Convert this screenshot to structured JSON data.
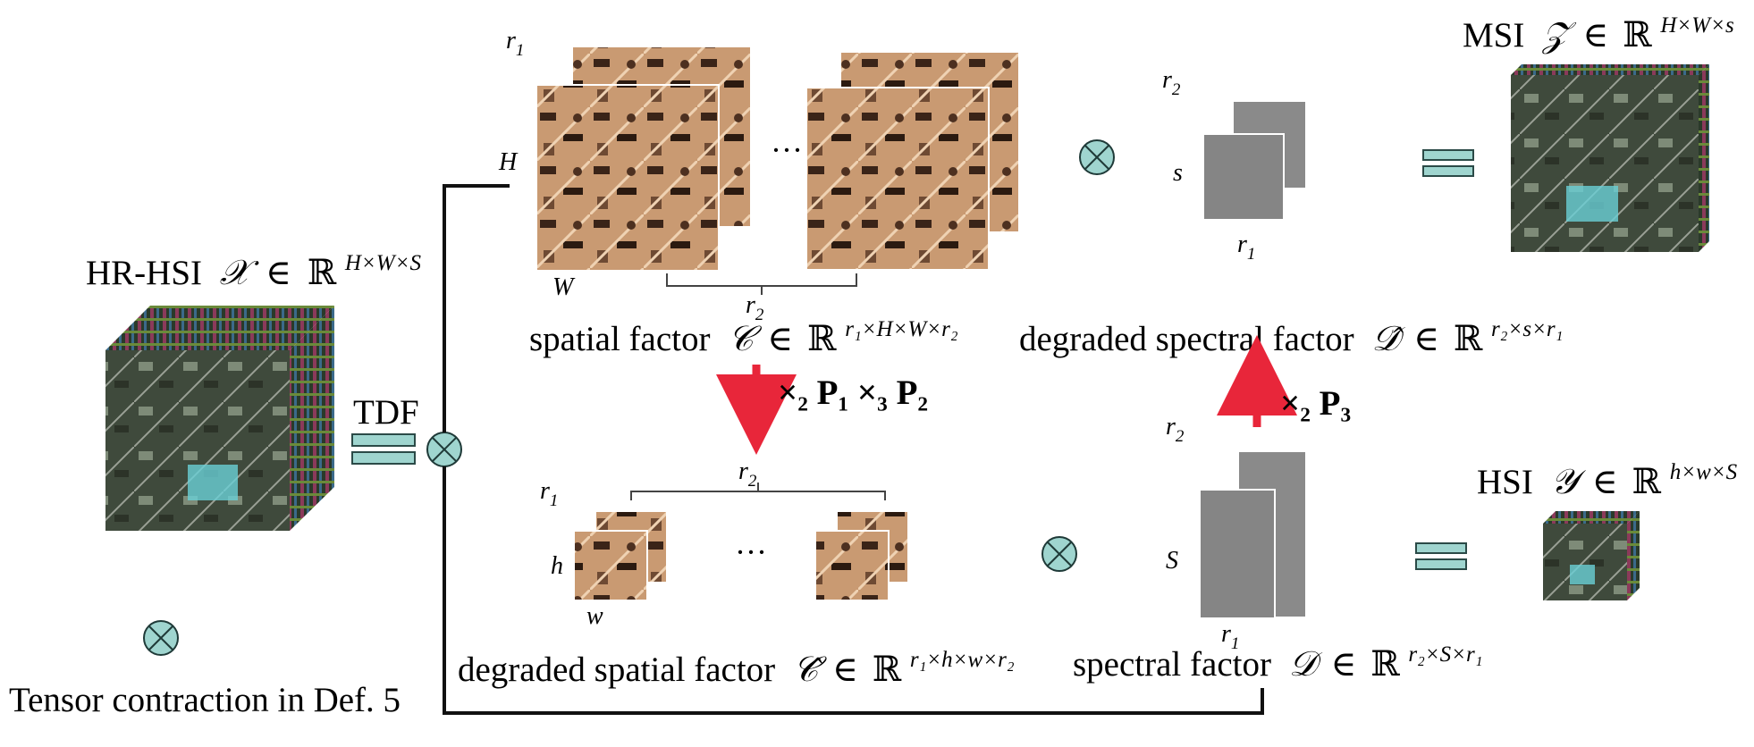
{
  "hr_hsi": {
    "label": "HR-HSI",
    "sym": "𝒳",
    "in": "∈",
    "ring": "ℝ",
    "exp": "H×W×S"
  },
  "tdf": {
    "label": "TDF"
  },
  "legend": {
    "text": "Tensor contraction in Def. 5"
  },
  "spatial": {
    "H": "H",
    "W": "W",
    "r1": "r",
    "r1s": "1",
    "r2": "r",
    "r2s": "2",
    "caption_text": "spatial factor",
    "sym": "𝒞",
    "in": "∈",
    "ring": "ℝ",
    "exp": "r₁×H×W×r₂",
    "dots": "···"
  },
  "deg_spatial": {
    "h": "h",
    "w": "w",
    "r1": "r",
    "r1s": "1",
    "r2": "r",
    "r2s": "2",
    "caption_text": "degraded spatial factor",
    "sym": "𝒞̂",
    "in": "∈",
    "ring": "ℝ",
    "exp": "r₁×h×w×r₂",
    "dots": "···"
  },
  "deg_spectral": {
    "s": "s",
    "r1": "r",
    "r1s": "1",
    "r2": "r",
    "r2s": "2",
    "caption_text": "degraded spectral factor",
    "sym": "𝒟̂",
    "in": "∈",
    "ring": "ℝ",
    "exp": "r₂×s×r₁"
  },
  "spectral": {
    "S": "S",
    "r1": "r",
    "r1s": "1",
    "r2": "r",
    "r2s": "2",
    "caption_text": "spectral factor",
    "sym": "𝒟",
    "in": "∈",
    "ring": "ℝ",
    "exp": "r₂×S×r₁"
  },
  "msi": {
    "label": "MSI",
    "sym": "𝒵",
    "in": "∈",
    "ring": "ℝ",
    "exp": "H×W×s"
  },
  "hsi": {
    "label": "HSI",
    "sym": "𝒴",
    "in": "∈",
    "ring": "ℝ",
    "exp": "h×w×S"
  },
  "op_down": {
    "text": "×₂ P₁ ×₃ P₂"
  },
  "op_up": {
    "text": "×₂ P₃"
  },
  "colors": {
    "teal": "#9fd5cf",
    "arrow": "#e8263a",
    "tile": "#c8946b",
    "gray": "#8a8a8a"
  }
}
